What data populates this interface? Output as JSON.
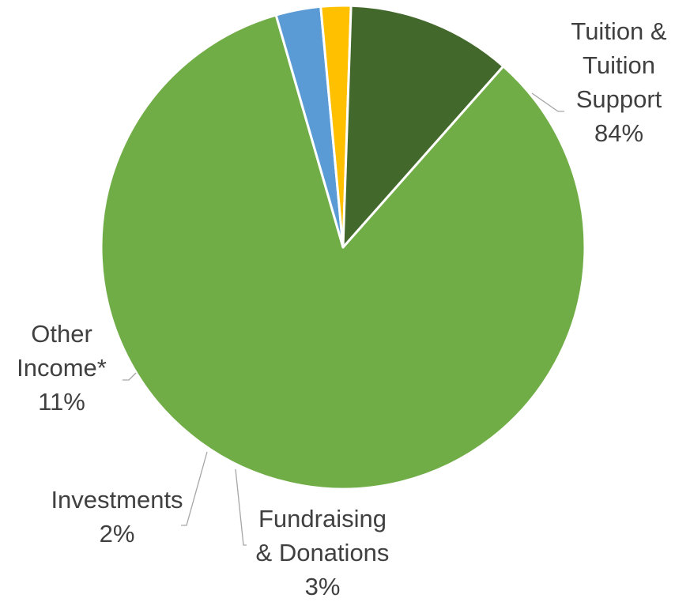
{
  "chart_data": {
    "type": "pie",
    "title": "",
    "slices": [
      {
        "name": "Tuition & Tuition Support",
        "value": 84,
        "label_lines": [
          "Tuition &",
          "Tuition",
          "Support"
        ],
        "percent_label": "84%",
        "color": "#70ad47"
      },
      {
        "name": "Fundraising & Donations",
        "value": 3,
        "label_lines": [
          "Fundraising",
          "& Donations"
        ],
        "percent_label": "3%",
        "color": "#5b9bd5"
      },
      {
        "name": "Investments",
        "value": 2,
        "label_lines": [
          "Investments"
        ],
        "percent_label": "2%",
        "color": "#ffc000"
      },
      {
        "name": "Other Income*",
        "value": 11,
        "label_lines": [
          "Other",
          "Income*"
        ],
        "percent_label": "11%",
        "color": "#43682b"
      }
    ]
  }
}
